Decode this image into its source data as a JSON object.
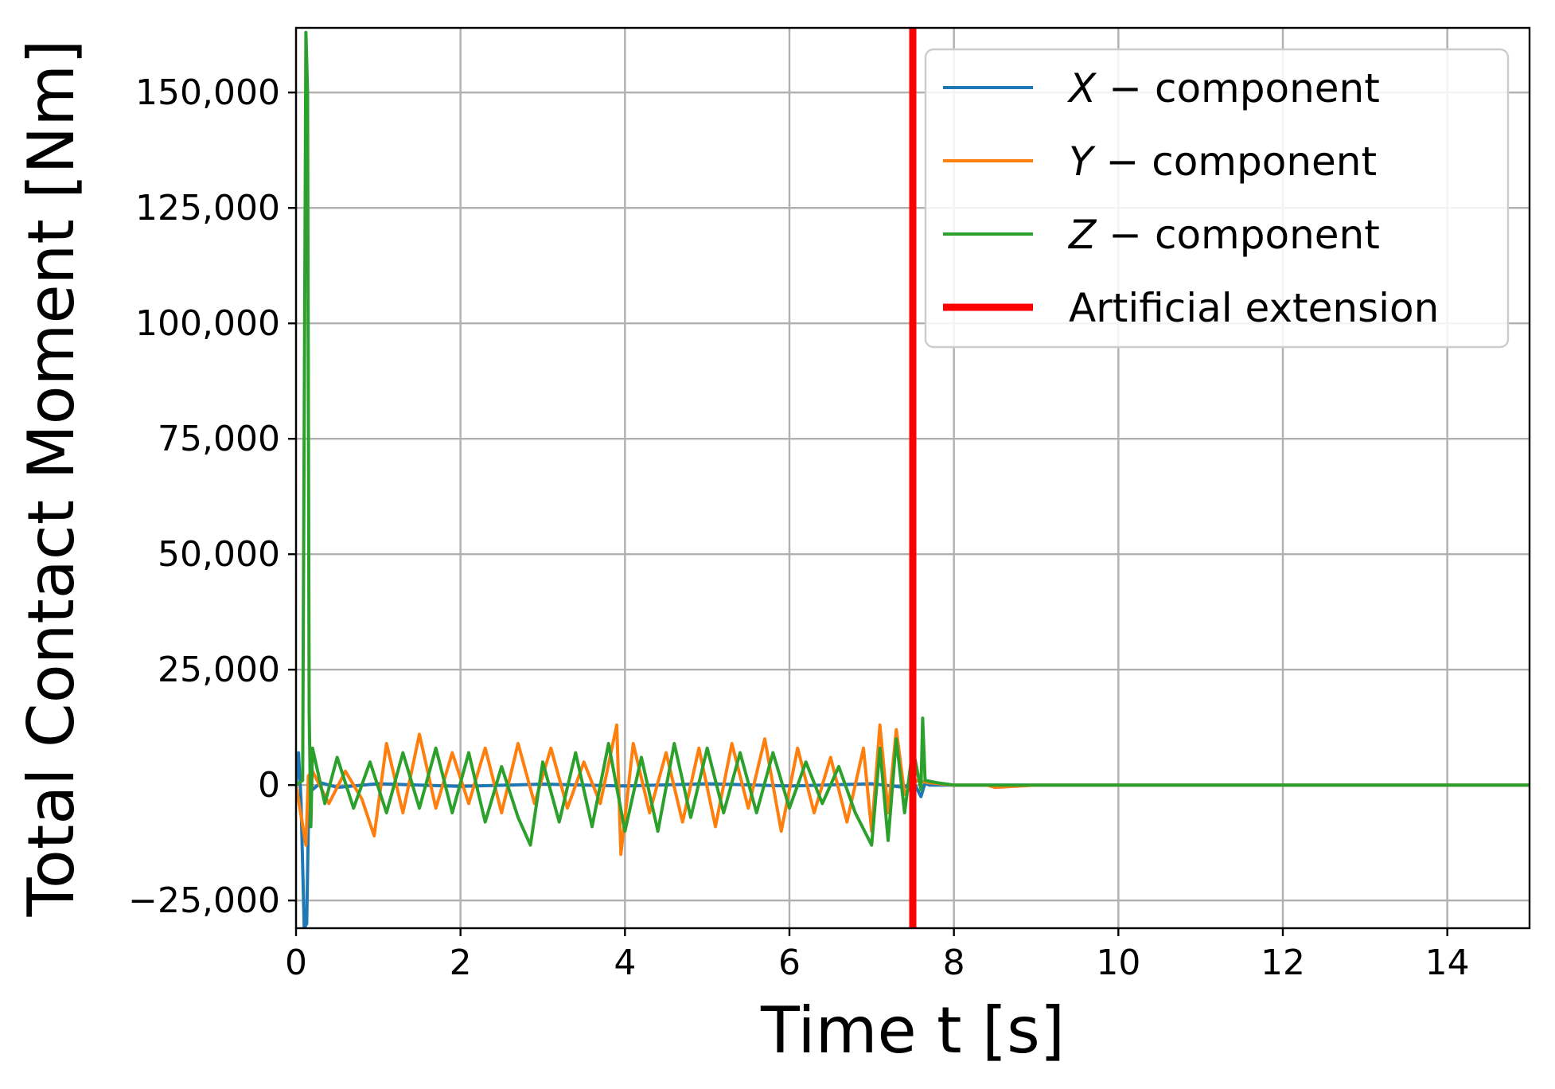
{
  "chart_data": {
    "type": "line",
    "xlabel": "Time t [s]",
    "ylabel": "Total Contact Moment [Nm]",
    "xlim": [
      0,
      15
    ],
    "ylim": [
      -31000,
      164000
    ],
    "grid": true,
    "legend_position": "top-right",
    "x_ticks": [
      {
        "value": 0,
        "label": "0"
      },
      {
        "value": 2,
        "label": "2"
      },
      {
        "value": 4,
        "label": "4"
      },
      {
        "value": 6,
        "label": "6"
      },
      {
        "value": 8,
        "label": "8"
      },
      {
        "value": 10,
        "label": "10"
      },
      {
        "value": 12,
        "label": "12"
      },
      {
        "value": 14,
        "label": "14"
      }
    ],
    "y_ticks": [
      {
        "value": -25000,
        "label": "−25,000"
      },
      {
        "value": 0,
        "label": "0"
      },
      {
        "value": 25000,
        "label": "25,000"
      },
      {
        "value": 50000,
        "label": "50,000"
      },
      {
        "value": 75000,
        "label": "75,000"
      },
      {
        "value": 100000,
        "label": "100,000"
      },
      {
        "value": 125000,
        "label": "125,000"
      },
      {
        "value": 150000,
        "label": "150,000"
      }
    ],
    "series": [
      {
        "name": "X − component",
        "legend_var": "X",
        "legend_rest": " − component",
        "color": "#1f77b4",
        "x": [
          0,
          0.03,
          0.06,
          0.1,
          0.13,
          0.16,
          0.2,
          0.3,
          0.5,
          1,
          2,
          3,
          4,
          5,
          6,
          7,
          7.4,
          7.5,
          7.6,
          7.65,
          7.7,
          8,
          9,
          10,
          12,
          14,
          15
        ],
        "y": [
          0,
          7000,
          -3000,
          -31000,
          -30000,
          2000,
          -1000,
          500,
          -500,
          300,
          -300,
          200,
          -200,
          300,
          -200,
          300,
          -500,
          1000,
          -2500,
          500,
          0,
          0,
          0,
          0,
          0,
          0,
          0
        ]
      },
      {
        "name": "Y − component",
        "legend_var": "Y",
        "legend_rest": " − component",
        "color": "#ff7f0e",
        "x": [
          0,
          0.12,
          0.15,
          0.2,
          0.4,
          0.6,
          0.8,
          0.95,
          1.1,
          1.3,
          1.5,
          1.7,
          1.9,
          2.1,
          2.3,
          2.5,
          2.7,
          2.9,
          3.1,
          3.3,
          3.5,
          3.7,
          3.9,
          3.95,
          4.1,
          4.3,
          4.5,
          4.7,
          4.9,
          5.1,
          5.3,
          5.5,
          5.7,
          5.9,
          6.1,
          6.3,
          6.5,
          6.7,
          6.9,
          7.0,
          7.1,
          7.2,
          7.3,
          7.4,
          7.55,
          7.7,
          8,
          8.4,
          8.5,
          9,
          10,
          12,
          14,
          15
        ],
        "y": [
          0,
          -13000,
          2000,
          3000,
          -4000,
          3000,
          -3000,
          -11000,
          9000,
          -6000,
          11000,
          -5000,
          7000,
          -4000,
          8000,
          -6000,
          9000,
          -4000,
          8000,
          -5000,
          5000,
          -4000,
          13000,
          -15000,
          9000,
          -6000,
          7000,
          -8000,
          8000,
          -9000,
          9000,
          -5000,
          10000,
          -10000,
          8000,
          -6000,
          6000,
          -8000,
          8000,
          -10000,
          13000,
          -6000,
          12000,
          -2000,
          1000,
          500,
          0,
          0,
          -500,
          0,
          0,
          0,
          0,
          0
        ]
      },
      {
        "name": "Z − component",
        "legend_var": "Z",
        "legend_rest": " − component",
        "color": "#2ca02c",
        "x": [
          0,
          0.08,
          0.12,
          0.14,
          0.16,
          0.18,
          0.2,
          0.35,
          0.5,
          0.7,
          0.9,
          1.1,
          1.3,
          1.5,
          1.7,
          1.9,
          2.1,
          2.3,
          2.5,
          2.7,
          2.85,
          3.0,
          3.2,
          3.4,
          3.6,
          3.8,
          4.0,
          4.2,
          4.4,
          4.6,
          4.8,
          5.0,
          5.2,
          5.4,
          5.6,
          5.8,
          6.0,
          6.2,
          6.4,
          6.6,
          6.8,
          7.0,
          7.1,
          7.2,
          7.3,
          7.4,
          7.5,
          7.6,
          7.62,
          7.65,
          7.8,
          8,
          10,
          12,
          14,
          15
        ],
        "y": [
          0,
          1000,
          163000,
          150000,
          16000,
          -9000,
          8000,
          -4000,
          6000,
          -5000,
          5000,
          -6000,
          7000,
          -5000,
          8000,
          -6000,
          7000,
          -8000,
          4000,
          -7000,
          -13000,
          5000,
          -8000,
          7000,
          -9000,
          9000,
          -10000,
          6000,
          -10000,
          9000,
          -7000,
          8000,
          -6000,
          7000,
          -6000,
          7000,
          -5000,
          5000,
          -4000,
          4000,
          -6000,
          -13000,
          8000,
          -12000,
          10000,
          -6000,
          8000,
          -1000,
          14500,
          1000,
          500,
          0,
          0,
          0,
          0,
          0
        ]
      },
      {
        "name": "Artificial extension",
        "legend_var": "",
        "legend_rest": "Artificial extension",
        "color": "#ff0000",
        "x": [
          7.5,
          7.5
        ],
        "y": [
          -31000,
          164000
        ]
      }
    ]
  }
}
